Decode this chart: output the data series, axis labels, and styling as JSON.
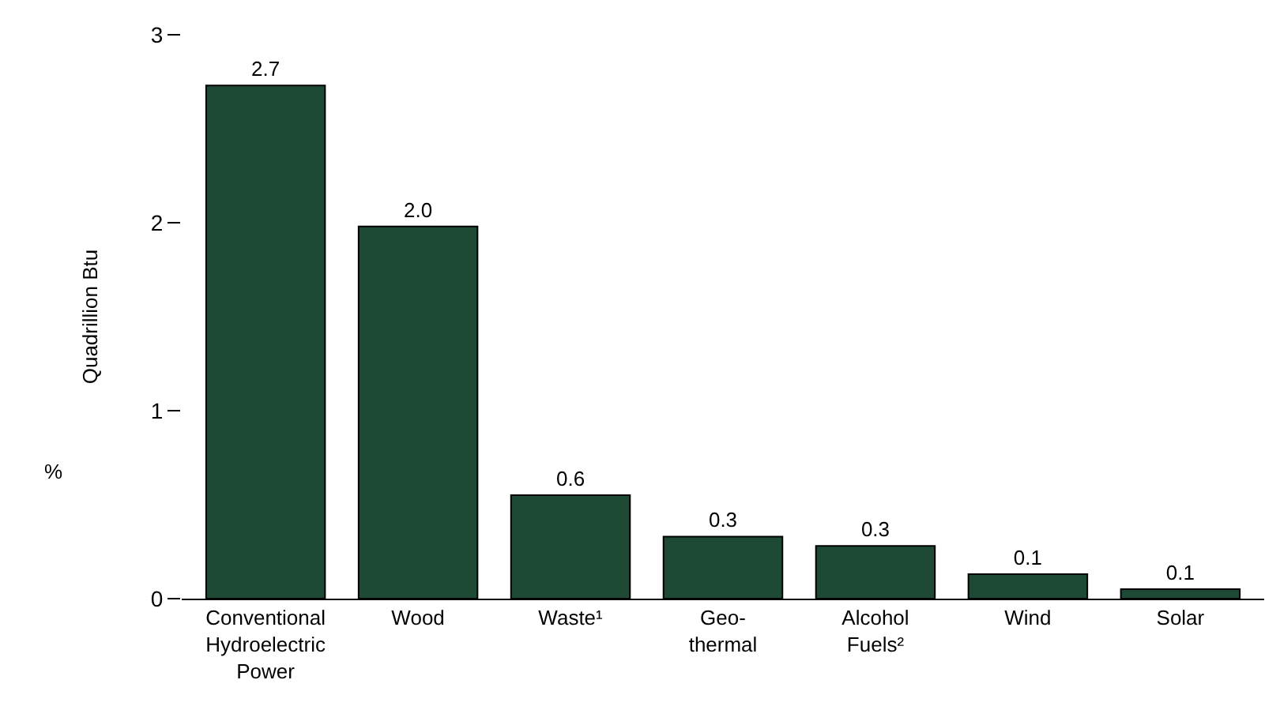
{
  "chart_data": {
    "type": "bar",
    "ylabel": "Quadrillion Btu",
    "categories": [
      "Conventional\nHydroelectric\nPower",
      "Wood",
      "Waste¹",
      "Geo-\nthermal",
      "Alcohol\nFuels²",
      "Wind",
      "Solar"
    ],
    "values": [
      2.73,
      1.98,
      0.55,
      0.33,
      0.28,
      0.13,
      0.05
    ],
    "value_labels": [
      "2.7",
      "2.0",
      "0.6",
      "0.3",
      "0.3",
      "0.1",
      "0.1"
    ],
    "color": "#1e4a35",
    "ylim": [
      0,
      3
    ],
    "yticks": [
      0,
      1,
      2,
      3
    ],
    "annotations": [
      "%"
    ]
  }
}
